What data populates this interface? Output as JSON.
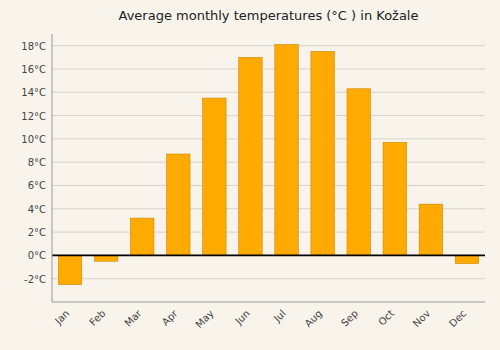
{
  "chart_data": {
    "type": "bar",
    "title": "Average monthly temperatures (°C ) in Kožale",
    "categories": [
      "Jan",
      "Feb",
      "Mar",
      "Apr",
      "May",
      "Jun",
      "Jul",
      "Aug",
      "Sep",
      "Oct",
      "Nov",
      "Dec"
    ],
    "values": [
      -2.5,
      -0.5,
      3.2,
      8.7,
      13.5,
      17.0,
      18.1,
      17.5,
      14.3,
      9.7,
      4.4,
      -0.7
    ],
    "color": "#FFAA00",
    "ylim": [
      -4,
      19
    ],
    "yticks": [
      {
        "value": -2,
        "label": "-2°C"
      },
      {
        "value": 0,
        "label": "0°C"
      },
      {
        "value": 2,
        "label": "2°C"
      },
      {
        "value": 4,
        "label": "4°C"
      },
      {
        "value": 6,
        "label": "6°C"
      },
      {
        "value": 8,
        "label": "8°C"
      },
      {
        "value": 10,
        "label": "10°C"
      },
      {
        "value": 12,
        "label": "12°C"
      },
      {
        "value": 14,
        "label": "14°C"
      },
      {
        "value": 16,
        "label": "16°C"
      },
      {
        "value": 18,
        "label": "18°C"
      }
    ],
    "grid": true
  }
}
